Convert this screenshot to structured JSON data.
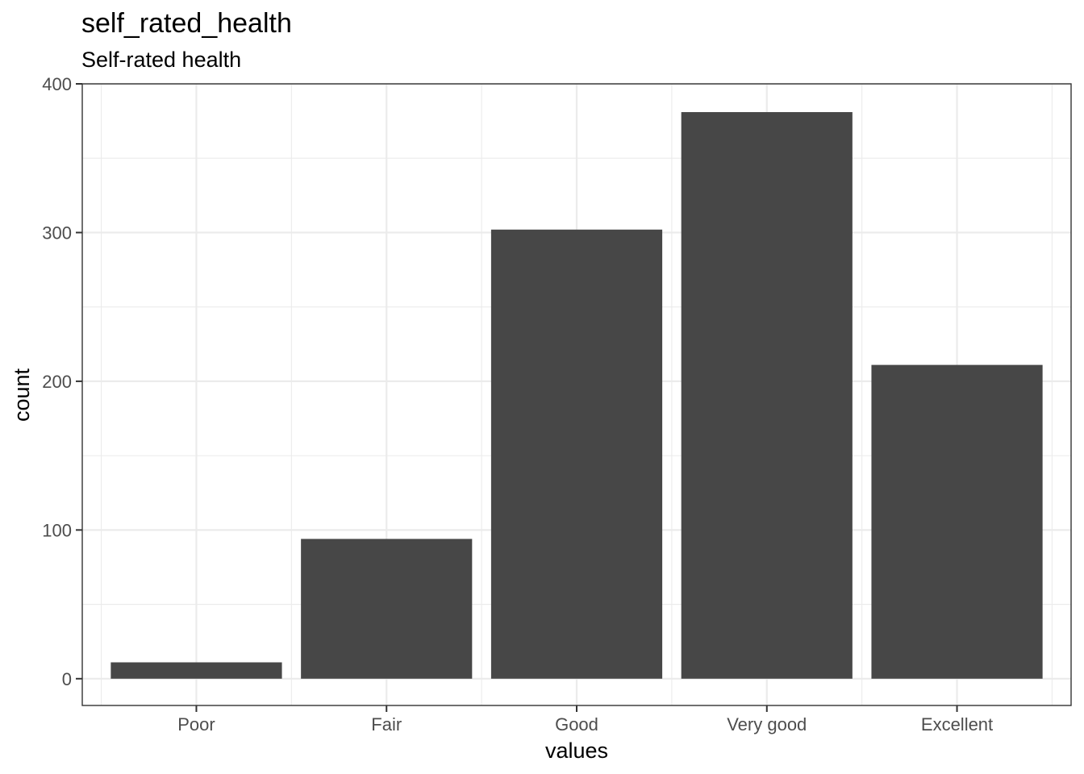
{
  "chart_data": {
    "type": "bar",
    "title": "self_rated_health",
    "subtitle": "Self-rated health",
    "xlabel": "values",
    "ylabel": "count",
    "categories": [
      "Poor",
      "Fair",
      "Good",
      "Very good",
      "Excellent"
    ],
    "values": [
      11,
      94,
      302,
      381,
      211
    ],
    "ylim": [
      -18,
      400
    ],
    "yticks": [
      0,
      100,
      200,
      300,
      400
    ],
    "ytick_labels": [
      "0",
      "100",
      "200",
      "300",
      "400"
    ],
    "grid": true,
    "bar_color": "#474747"
  }
}
